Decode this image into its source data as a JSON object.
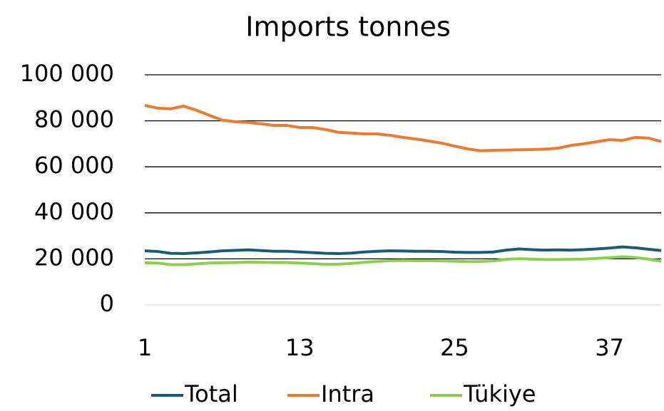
{
  "chart_data": {
    "type": "line",
    "title": "Imports tonnes",
    "x": [
      1,
      2,
      3,
      4,
      5,
      6,
      7,
      8,
      9,
      10,
      11,
      12,
      13,
      14,
      15,
      16,
      17,
      18,
      19,
      20,
      21,
      22,
      23,
      24,
      25,
      26,
      27,
      28,
      29,
      30,
      31,
      32,
      33,
      34,
      35,
      36,
      37,
      38,
      39,
      40,
      41
    ],
    "xlim": [
      1,
      41
    ],
    "xticks": [
      1,
      13,
      25,
      37
    ],
    "ylim": [
      0,
      100000
    ],
    "yticks": [
      0,
      {
        "value": 20000,
        "label": "20 000"
      },
      {
        "value": 40000,
        "label": "40 000"
      },
      {
        "value": 60000,
        "label": "60 000"
      },
      {
        "value": 80000,
        "label": "80 000"
      },
      {
        "value": 100000,
        "label": "100 000"
      }
    ],
    "grid": true,
    "legend": "bottom",
    "series": [
      {
        "name": "Total",
        "color": "#1b5b7a",
        "values": [
          23500,
          23200,
          22400,
          22300,
          22600,
          23000,
          23500,
          23700,
          23900,
          23600,
          23300,
          23300,
          23000,
          22700,
          22400,
          22300,
          22500,
          23000,
          23300,
          23500,
          23400,
          23300,
          23300,
          23200,
          22900,
          22800,
          22800,
          23000,
          23800,
          24300,
          24000,
          23800,
          23900,
          23800,
          24000,
          24300,
          24700,
          25200,
          24800,
          24200,
          23600
        ]
      },
      {
        "name": "Intra",
        "color": "#ec7a30",
        "values": [
          86700,
          85500,
          85200,
          86400,
          84600,
          82400,
          80300,
          79600,
          79300,
          78700,
          78000,
          78000,
          77100,
          77100,
          76200,
          75000,
          74700,
          74300,
          74300,
          73700,
          72800,
          72100,
          71200,
          70300,
          69000,
          67800,
          67000,
          67200,
          67300,
          67400,
          67500,
          67700,
          68100,
          69300,
          70000,
          70900,
          71800,
          71500,
          72800,
          72500,
          71000
        ]
      },
      {
        "name": "Tükiye",
        "color": "#8bcf4e",
        "values": [
          18300,
          18200,
          17500,
          17500,
          17800,
          18200,
          18300,
          18400,
          18600,
          18500,
          18400,
          18400,
          18200,
          17900,
          17600,
          17700,
          18000,
          18500,
          18900,
          19200,
          19300,
          19200,
          19200,
          19100,
          19000,
          18800,
          18900,
          19100,
          19800,
          20100,
          19900,
          19700,
          19700,
          19800,
          19900,
          20200,
          20500,
          20900,
          20600,
          19900,
          19000
        ]
      }
    ]
  }
}
